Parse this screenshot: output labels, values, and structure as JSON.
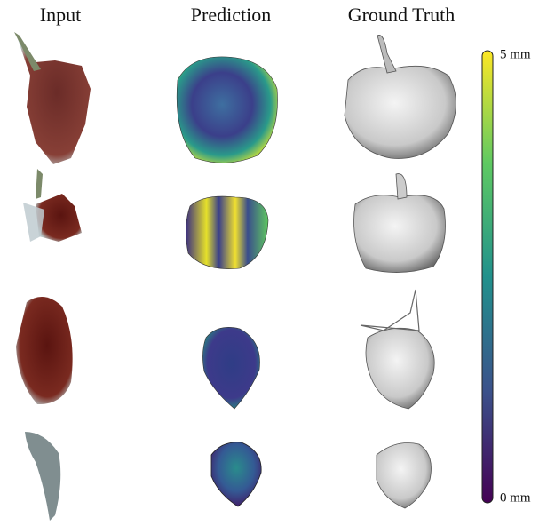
{
  "columns": [
    "Input",
    "Prediction",
    "Ground Truth"
  ],
  "colorbar": {
    "max_label": "5 mm",
    "min_label": "0 mm"
  }
}
